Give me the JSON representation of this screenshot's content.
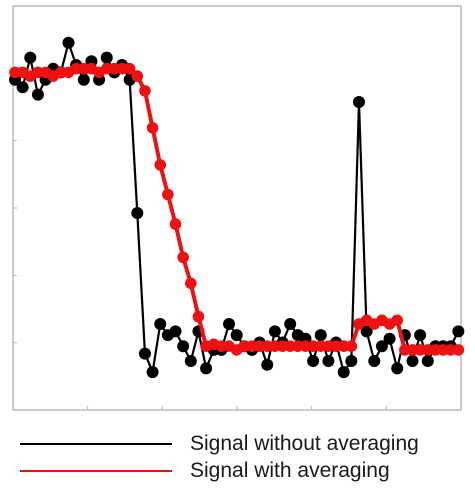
{
  "chart_data": {
    "type": "line",
    "title": "",
    "xlabel": "",
    "ylabel": "",
    "xlim": [
      0,
      59
    ],
    "ylim": [
      0,
      1
    ],
    "grid": false,
    "legend_position": "bottom",
    "x": [
      0,
      1,
      2,
      3,
      4,
      5,
      6,
      7,
      8,
      9,
      10,
      11,
      12,
      13,
      14,
      15,
      16,
      17,
      18,
      19,
      20,
      21,
      22,
      23,
      24,
      25,
      26,
      27,
      28,
      29,
      30,
      31,
      32,
      33,
      34,
      35,
      36,
      37,
      38,
      39,
      40,
      41,
      42,
      43,
      44,
      45,
      46,
      47,
      48,
      49,
      50,
      51,
      52,
      53,
      54,
      55,
      56,
      57,
      58
    ],
    "series": [
      {
        "name": "Signal without averaging",
        "color": "#000000",
        "values": [
          0.86,
          0.84,
          0.92,
          0.82,
          0.86,
          0.89,
          0.88,
          0.96,
          0.9,
          0.86,
          0.91,
          0.86,
          0.92,
          0.88,
          0.9,
          0.86,
          0.5,
          0.12,
          0.07,
          0.2,
          0.17,
          0.18,
          0.14,
          0.1,
          0.18,
          0.08,
          0.13,
          0.13,
          0.2,
          0.17,
          0.14,
          0.13,
          0.15,
          0.09,
          0.18,
          0.15,
          0.2,
          0.17,
          0.16,
          0.1,
          0.17,
          0.1,
          0.15,
          0.07,
          0.1,
          0.8,
          0.18,
          0.1,
          0.14,
          0.16,
          0.08,
          0.17,
          0.1,
          0.17,
          0.1,
          0.14,
          0.14,
          0.14,
          0.18
        ]
      },
      {
        "name": "Signal with averaging",
        "color": "#ee1111",
        "values": [
          0.88,
          0.88,
          0.87,
          0.88,
          0.88,
          0.87,
          0.88,
          0.88,
          0.89,
          0.89,
          0.89,
          0.88,
          0.89,
          0.89,
          0.89,
          0.89,
          0.87,
          0.83,
          0.73,
          0.63,
          0.55,
          0.47,
          0.38,
          0.31,
          0.22,
          0.14,
          0.145,
          0.14,
          0.14,
          0.13,
          0.14,
          0.14,
          0.14,
          0.14,
          0.14,
          0.14,
          0.14,
          0.14,
          0.14,
          0.14,
          0.14,
          0.14,
          0.14,
          0.14,
          0.14,
          0.2,
          0.21,
          0.2,
          0.21,
          0.2,
          0.21,
          0.13,
          0.13,
          0.13,
          0.13,
          0.13,
          0.13,
          0.13,
          0.13
        ]
      }
    ]
  }
}
